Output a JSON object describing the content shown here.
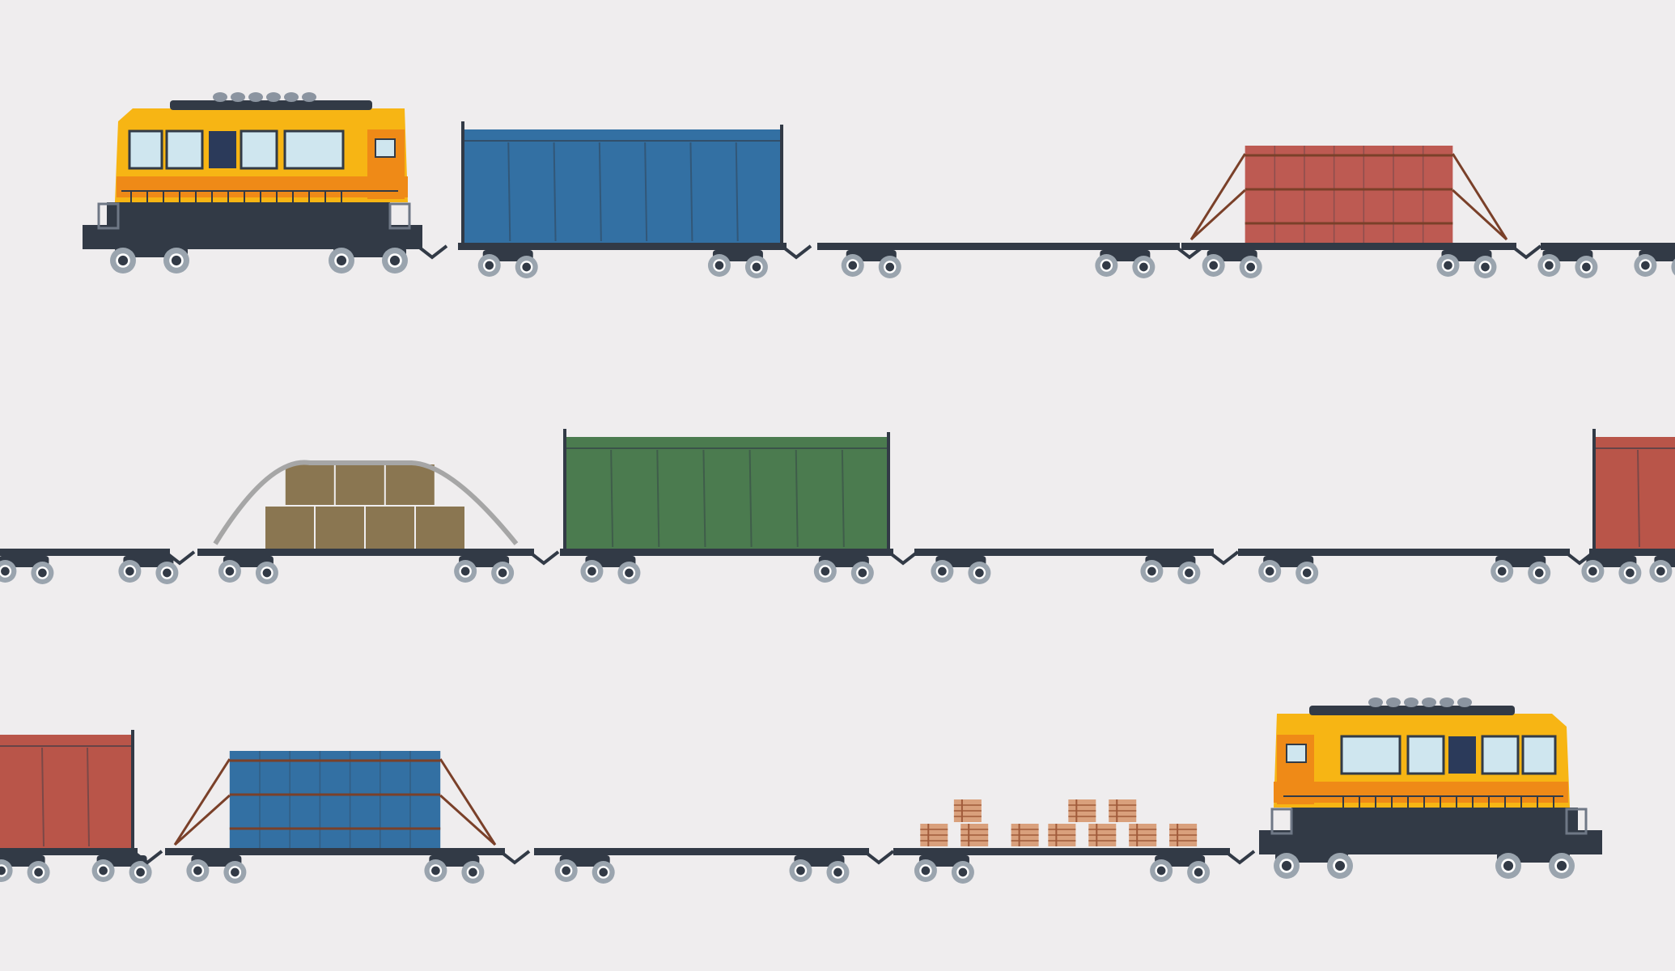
{
  "scene": {
    "background": "#efedee",
    "rail_color": "#323a46",
    "wheel_color": "#9aa4ae",
    "rows": [
      {
        "name": "row-1",
        "items": [
          {
            "kind": "locomotive",
            "facing": "right",
            "body": "#f7b514",
            "stripe": "#ef8a17"
          },
          {
            "kind": "boxcar",
            "color": "#3370a3"
          },
          {
            "kind": "empty-flatcar"
          },
          {
            "kind": "strapped-crate",
            "color": "#bd5a52",
            "strap": "#7a4029"
          },
          {
            "kind": "empty-flatcar"
          }
        ]
      },
      {
        "name": "row-2",
        "items": [
          {
            "kind": "empty-flatcar"
          },
          {
            "kind": "boxes-under-tarp",
            "color": "#8a7651",
            "tarp": "#a6a6a6"
          },
          {
            "kind": "boxcar",
            "color": "#4b7b4f"
          },
          {
            "kind": "empty-flatcar"
          },
          {
            "kind": "empty-flatcar"
          },
          {
            "kind": "boxcar",
            "color": "#b95549"
          }
        ]
      },
      {
        "name": "row-3",
        "items": [
          {
            "kind": "boxcar",
            "color": "#b95549"
          },
          {
            "kind": "strapped-crate",
            "color": "#3370a3",
            "strap": "#7a4029"
          },
          {
            "kind": "empty-flatcar"
          },
          {
            "kind": "lumber-bundles",
            "color": "#d9a07c",
            "strap": "#a05a3a"
          },
          {
            "kind": "locomotive",
            "facing": "left",
            "body": "#f7b514",
            "stripe": "#ef8a17"
          }
        ]
      }
    ]
  }
}
